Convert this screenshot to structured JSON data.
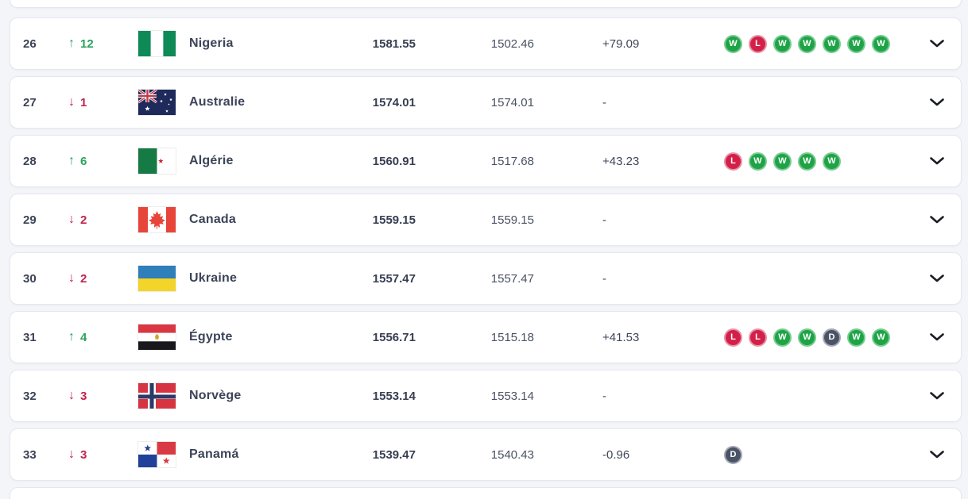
{
  "colors": {
    "page_background": "#f4f5f9",
    "card_background": "#ffffff",
    "card_border": "#e4e7ef",
    "text_primary": "#3c4459",
    "movement_up": "#28a35c",
    "movement_down": "#bf2450",
    "badge_win": "#1ea446",
    "badge_loss": "#d32049",
    "badge_draw": "#4b5366"
  },
  "icons": {
    "up_arrow": "↑",
    "down_arrow": "↓",
    "chevron": "chevron-down"
  },
  "list": {
    "rows": [
      {
        "rank": "26",
        "move_dir": "up",
        "move": "12",
        "country": "Nigeria",
        "flag": "nigeria",
        "points": "1581.55",
        "prev_points": "1502.46",
        "change": "+79.09",
        "form": [
          "W",
          "L",
          "W",
          "W",
          "W",
          "W",
          "W"
        ]
      },
      {
        "rank": "27",
        "move_dir": "down",
        "move": "1",
        "country": "Australie",
        "flag": "australia",
        "points": "1574.01",
        "prev_points": "1574.01",
        "change": "-",
        "form": []
      },
      {
        "rank": "28",
        "move_dir": "up",
        "move": "6",
        "country": "Algérie",
        "flag": "algeria",
        "points": "1560.91",
        "prev_points": "1517.68",
        "change": "+43.23",
        "form": [
          "L",
          "W",
          "W",
          "W",
          "W"
        ]
      },
      {
        "rank": "29",
        "move_dir": "down",
        "move": "2",
        "country": "Canada",
        "flag": "canada",
        "points": "1559.15",
        "prev_points": "1559.15",
        "change": "-",
        "form": []
      },
      {
        "rank": "30",
        "move_dir": "down",
        "move": "2",
        "country": "Ukraine",
        "flag": "ukraine",
        "points": "1557.47",
        "prev_points": "1557.47",
        "change": "-",
        "form": []
      },
      {
        "rank": "31",
        "move_dir": "up",
        "move": "4",
        "country": "Égypte",
        "flag": "egypt",
        "points": "1556.71",
        "prev_points": "1515.18",
        "change": "+41.53",
        "form": [
          "L",
          "L",
          "W",
          "W",
          "D",
          "W",
          "W"
        ]
      },
      {
        "rank": "32",
        "move_dir": "down",
        "move": "3",
        "country": "Norvège",
        "flag": "norway",
        "points": "1553.14",
        "prev_points": "1553.14",
        "change": "-",
        "form": []
      },
      {
        "rank": "33",
        "move_dir": "down",
        "move": "3",
        "country": "Panamá",
        "flag": "panama",
        "points": "1539.47",
        "prev_points": "1540.43",
        "change": "-0.96",
        "form": [
          "D"
        ]
      }
    ]
  }
}
